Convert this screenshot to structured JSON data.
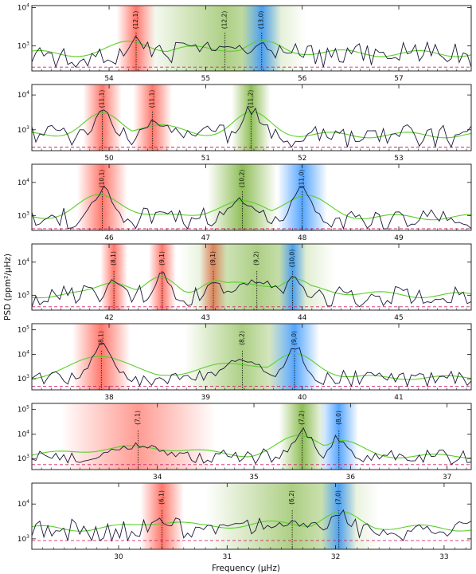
{
  "chart_data": {
    "type": "line",
    "xlabel": "Frequency (μHz)",
    "ylabel": "PSD (ppm²/μHz)",
    "colors": {
      "psd": "#1a1a3a",
      "smooth": "#5ad02a",
      "noise": "#d0246e",
      "l0": "#1e88ff",
      "l1": "#ff4a3a",
      "l2": "#6aa820",
      "mode_line": "#222222"
    },
    "panels": [
      {
        "xlim": [
          53.2,
          57.75
        ],
        "xticks": [
          54,
          55,
          56,
          57
        ],
        "ylog": [
          2.35,
          4.05
        ],
        "yticks": [
          3,
          4
        ],
        "noise": 2.45,
        "psd_seed": 1,
        "modes": [
          {
            "label": "(12,1)",
            "freq": 54.28,
            "l": 1,
            "width": 0.1,
            "peak": 3.25
          },
          {
            "label": "(12,2)",
            "freq": 55.2,
            "l": 2,
            "width": 0.42,
            "peak": 3.0
          },
          {
            "label": "(13,0)",
            "freq": 55.58,
            "l": 0,
            "width": 0.1,
            "peak": 3.18
          }
        ]
      },
      {
        "xlim": [
          49.2,
          53.75
        ],
        "xticks": [
          50,
          51,
          52,
          53
        ],
        "ylog": [
          2.4,
          4.3
        ],
        "yticks": [
          3,
          4
        ],
        "noise": 2.5,
        "psd_seed": 2,
        "modes": [
          {
            "label": "(11,1)",
            "freq": 49.93,
            "l": 1,
            "width": 0.1,
            "peak": 3.65
          },
          {
            "label": "(11,1)",
            "freq": 50.45,
            "l": 1,
            "width": 0.1,
            "peak": 3.3
          },
          {
            "label": "(11,2)",
            "freq": 51.47,
            "l": 2,
            "width": 0.1,
            "peak": 3.7
          }
        ]
      },
      {
        "xlim": [
          45.2,
          49.75
        ],
        "xticks": [
          46,
          47,
          48,
          49
        ],
        "ylog": [
          2.55,
          4.55
        ],
        "yticks": [
          3,
          4
        ],
        "noise": 2.6,
        "psd_seed": 3,
        "modes": [
          {
            "label": "(10,1)",
            "freq": 45.93,
            "l": 1,
            "width": 0.13,
            "peak": 3.85
          },
          {
            "label": "(10,2)",
            "freq": 47.38,
            "l": 2,
            "width": 0.18,
            "peak": 3.55
          },
          {
            "label": "(11,0)",
            "freq": 48.0,
            "l": 0,
            "width": 0.13,
            "peak": 3.85
          }
        ]
      },
      {
        "xlim": [
          41.2,
          45.75
        ],
        "xticks": [
          42,
          43,
          44,
          45
        ],
        "ylog": [
          2.55,
          4.55
        ],
        "yticks": [
          3,
          4
        ],
        "noise": 2.65,
        "psd_seed": 4,
        "modes": [
          {
            "label": "(8,1)",
            "freq": 42.05,
            "l": 1,
            "width": 0.07,
            "peak": 3.65
          },
          {
            "label": "(9,1)",
            "freq": 42.55,
            "l": 1,
            "width": 0.07,
            "peak": 3.7
          },
          {
            "label": "(9,1)",
            "freq": 43.08,
            "l": 1,
            "width": 0.07,
            "peak": 3.6
          },
          {
            "label": "(9,2)",
            "freq": 43.53,
            "l": 2,
            "width": 0.4,
            "peak": 3.5
          },
          {
            "label": "(10,0)",
            "freq": 43.9,
            "l": 0,
            "width": 0.07,
            "peak": 3.65
          }
        ]
      },
      {
        "xlim": [
          37.2,
          41.75
        ],
        "xticks": [
          38,
          39,
          40,
          41
        ],
        "ylog": [
          2.55,
          5.25
        ],
        "yticks": [
          3,
          4,
          5
        ],
        "noise": 2.7,
        "psd_seed": 5,
        "modes": [
          {
            "label": "(8,1)",
            "freq": 37.92,
            "l": 1,
            "width": 0.15,
            "peak": 4.4
          },
          {
            "label": "(8,2)",
            "freq": 39.38,
            "l": 2,
            "width": 0.3,
            "peak": 3.85
          },
          {
            "label": "(9,0)",
            "freq": 39.92,
            "l": 0,
            "width": 0.13,
            "peak": 4.35
          }
        ]
      },
      {
        "xlim": [
          32.7,
          37.25
        ],
        "xticks": [
          34,
          35,
          36,
          37
        ],
        "ylog": [
          2.55,
          5.25
        ],
        "yticks": [
          3,
          4,
          5
        ],
        "noise": 2.75,
        "psd_seed": 6,
        "modes": [
          {
            "label": "(7,1)",
            "freq": 33.8,
            "l": 1,
            "width": 0.4,
            "peak": 3.6
          },
          {
            "label": "(7,2)",
            "freq": 35.5,
            "l": 2,
            "width": 0.12,
            "peak": 4.3
          },
          {
            "label": "(8,0)",
            "freq": 35.88,
            "l": 0,
            "width": 0.1,
            "peak": 4.0
          }
        ]
      },
      {
        "xlim": [
          29.2,
          33.25
        ],
        "xticks": [
          30,
          31,
          32,
          33
        ],
        "ylog": [
          2.7,
          4.6
        ],
        "yticks": [
          3,
          4
        ],
        "noise": 2.95,
        "psd_seed": 7,
        "modes": [
          {
            "label": "(6,1)",
            "freq": 30.4,
            "l": 1,
            "width": 0.1,
            "peak": 3.6
          },
          {
            "label": "(6,2)",
            "freq": 31.6,
            "l": 2,
            "width": 0.4,
            "peak": 3.5
          },
          {
            "label": "(7,0)",
            "freq": 32.03,
            "l": 0,
            "width": 0.08,
            "peak": 3.9
          }
        ]
      }
    ]
  }
}
